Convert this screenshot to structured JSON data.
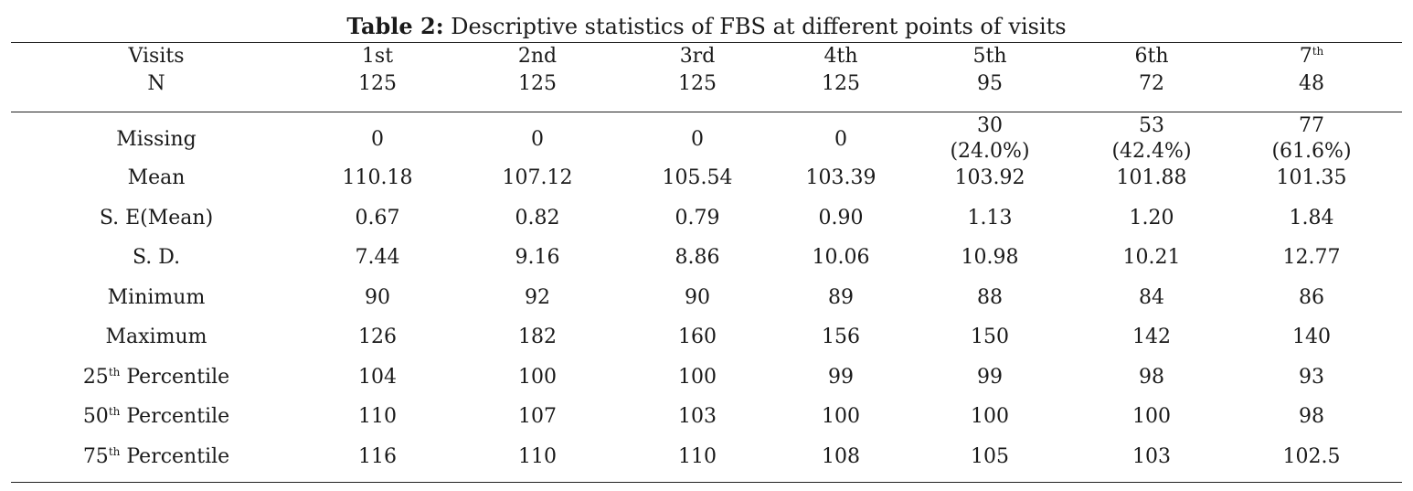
{
  "caption": {
    "label": "Table 2:",
    "text": "Descriptive statistics of FBS at different points of visits"
  },
  "header": {
    "row_label": "Visits",
    "visits": [
      {
        "base": "1st",
        "sup": ""
      },
      {
        "base": "2nd",
        "sup": ""
      },
      {
        "base": "3rd",
        "sup": ""
      },
      {
        "base": "4th",
        "sup": ""
      },
      {
        "base": "5th",
        "sup": ""
      },
      {
        "base": "6th",
        "sup": ""
      },
      {
        "base": "7",
        "sup": "th"
      }
    ]
  },
  "n_row": {
    "label": "N",
    "values": [
      "125",
      "125",
      "125",
      "125",
      "95",
      "72",
      "48"
    ]
  },
  "missing_row": {
    "label": "Missing",
    "values": [
      {
        "count": "0",
        "pct": ""
      },
      {
        "count": "0",
        "pct": ""
      },
      {
        "count": "0",
        "pct": ""
      },
      {
        "count": "0",
        "pct": ""
      },
      {
        "count": "30",
        "pct": "(24.0%)"
      },
      {
        "count": "53",
        "pct": "(42.4%)"
      },
      {
        "count": "77",
        "pct": "(61.6%)"
      }
    ]
  },
  "stat_rows": [
    {
      "label": {
        "pre": "Mean",
        "sup": "",
        "post": ""
      },
      "values": [
        "110.18",
        "107.12",
        "105.54",
        "103.39",
        "103.92",
        "101.88",
        "101.35"
      ]
    },
    {
      "label": {
        "pre": "S. E(Mean)",
        "sup": "",
        "post": ""
      },
      "values": [
        "0.67",
        "0.82",
        "0.79",
        "0.90",
        "1.13",
        "1.20",
        "1.84"
      ]
    },
    {
      "label": {
        "pre": "S. D.",
        "sup": "",
        "post": ""
      },
      "values": [
        "7.44",
        "9.16",
        "8.86",
        "10.06",
        "10.98",
        "10.21",
        "12.77"
      ]
    },
    {
      "label": {
        "pre": "Minimum",
        "sup": "",
        "post": ""
      },
      "values": [
        "90",
        "92",
        "90",
        "89",
        "88",
        "84",
        "86"
      ]
    },
    {
      "label": {
        "pre": "Maximum",
        "sup": "",
        "post": ""
      },
      "values": [
        "126",
        "182",
        "160",
        "156",
        "150",
        "142",
        "140"
      ]
    },
    {
      "label": {
        "pre": "25",
        "sup": "th",
        "post": " Percentile"
      },
      "values": [
        "104",
        "100",
        "100",
        "99",
        "99",
        "98",
        "93"
      ]
    },
    {
      "label": {
        "pre": "50",
        "sup": "th",
        "post": " Percentile"
      },
      "values": [
        "110",
        "107",
        "103",
        "100",
        "100",
        "100",
        "98"
      ]
    },
    {
      "label": {
        "pre": "75",
        "sup": "th",
        "post": " Percentile"
      },
      "values": [
        "116",
        "110",
        "110",
        "108",
        "105",
        "103",
        "102.5"
      ]
    }
  ]
}
